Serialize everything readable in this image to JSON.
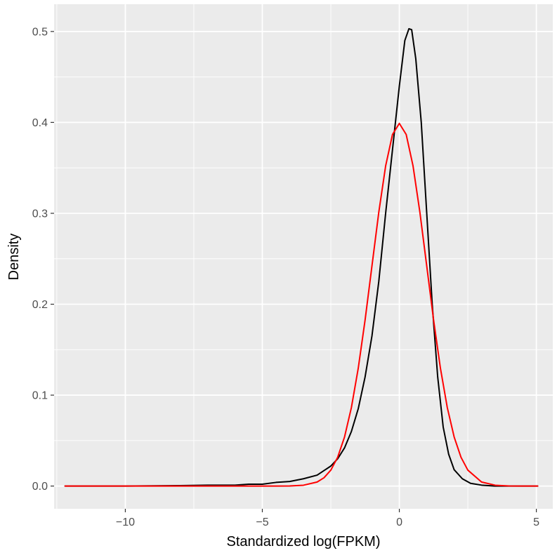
{
  "chart_data": {
    "type": "line",
    "title": "",
    "xlabel": "Standardized log(FPKM)",
    "ylabel": "Density",
    "xlim": [
      -12.6,
      5.6
    ],
    "ylim": [
      -0.025,
      0.53
    ],
    "x_ticks": [
      -10,
      -5,
      0,
      5
    ],
    "x_tick_labels": [
      "−10",
      "−5",
      "0",
      "5"
    ],
    "x_minor_ticks": [
      -12.5,
      -7.5,
      -2.5,
      2.5
    ],
    "y_ticks": [
      0.0,
      0.1,
      0.2,
      0.3,
      0.4,
      0.5
    ],
    "y_tick_labels": [
      "0.0",
      "0.1",
      "0.2",
      "0.3",
      "0.4",
      "0.5"
    ],
    "y_minor_ticks": [
      0.05,
      0.15,
      0.25,
      0.35,
      0.45
    ],
    "grid": true,
    "panel_background": "#ebebeb",
    "grid_color": "#ffffff",
    "legend": "none",
    "series": [
      {
        "color": "#000000",
        "x": [
          -12.2,
          -10,
          -8,
          -7,
          -6,
          -5.5,
          -5,
          -4.5,
          -4,
          -3.5,
          -3,
          -2.75,
          -2.5,
          -2.25,
          -2,
          -1.75,
          -1.5,
          -1.25,
          -1,
          -0.75,
          -0.5,
          -0.25,
          0,
          0.2,
          0.35,
          0.45,
          0.6,
          0.8,
          1.0,
          1.2,
          1.4,
          1.6,
          1.8,
          2.0,
          2.3,
          2.6,
          3.0,
          3.5,
          4.0,
          5.05
        ],
        "y": [
          0.0,
          0.0,
          0.0005,
          0.001,
          0.001,
          0.002,
          0.002,
          0.004,
          0.005,
          0.008,
          0.012,
          0.017,
          0.022,
          0.03,
          0.042,
          0.06,
          0.085,
          0.12,
          0.165,
          0.225,
          0.3,
          0.37,
          0.44,
          0.49,
          0.503,
          0.502,
          0.47,
          0.4,
          0.3,
          0.2,
          0.12,
          0.065,
          0.035,
          0.018,
          0.008,
          0.003,
          0.001,
          0.0,
          0.0,
          0.0
        ]
      },
      {
        "color": "#ff0000",
        "x": [
          -12.2,
          -10,
          -8,
          -6,
          -5,
          -4.5,
          -4,
          -3.5,
          -3,
          -2.75,
          -2.5,
          -2.25,
          -2,
          -1.75,
          -1.5,
          -1.25,
          -1,
          -0.75,
          -0.5,
          -0.25,
          0,
          0.25,
          0.5,
          0.75,
          1,
          1.25,
          1.5,
          1.75,
          2,
          2.25,
          2.5,
          3,
          3.5,
          4,
          4.5,
          5.05
        ],
        "y": [
          0.0,
          0.0,
          0.0,
          0.0,
          0.0,
          0.0,
          0.0001,
          0.0009,
          0.0044,
          0.0091,
          0.0175,
          0.0317,
          0.054,
          0.0863,
          0.1295,
          0.1826,
          0.242,
          0.3011,
          0.3521,
          0.3867,
          0.3989,
          0.3867,
          0.3521,
          0.3011,
          0.242,
          0.1826,
          0.1295,
          0.0863,
          0.054,
          0.0317,
          0.0175,
          0.0044,
          0.0009,
          0.0001,
          0.0,
          0.0
        ]
      }
    ]
  }
}
